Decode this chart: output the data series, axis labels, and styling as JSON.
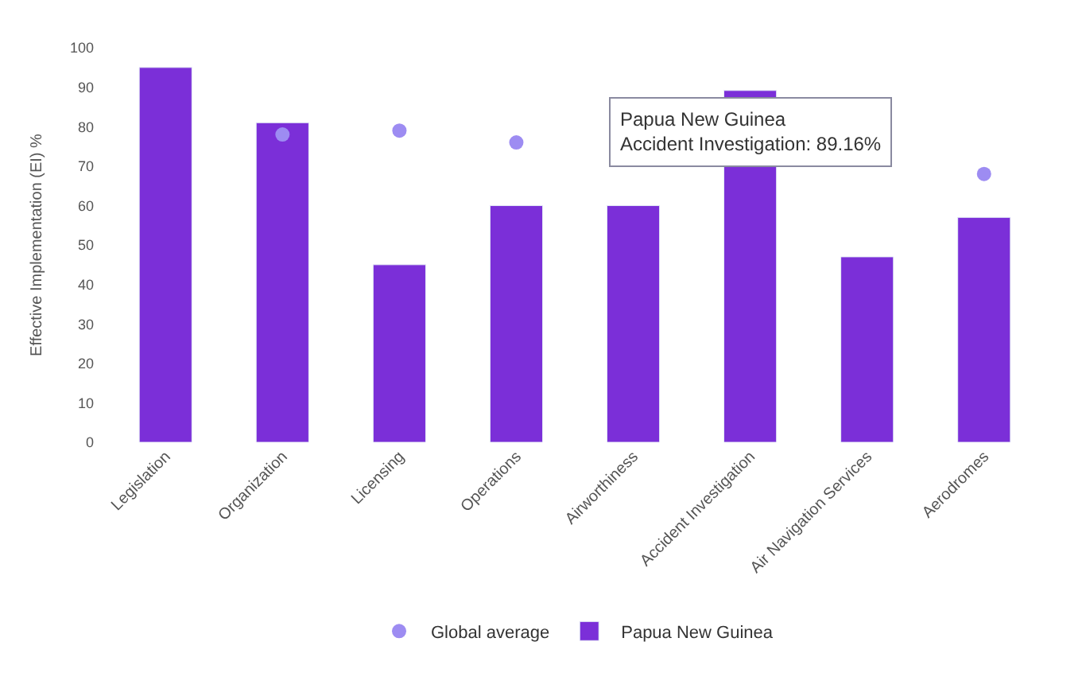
{
  "chart_data": {
    "type": "bar",
    "ylabel": "Effective Implementation (EI) %",
    "categories": [
      "Legislation",
      "Organization",
      "Licensing",
      "Operations",
      "Airworthiness",
      "Accident Investigation",
      "Air Navigation Services",
      "Aerodromes"
    ],
    "series": [
      {
        "name": "Global average",
        "type": "scatter",
        "color": "#9d8cf2",
        "values": [
          null,
          78,
          79,
          76,
          null,
          null,
          null,
          68
        ]
      },
      {
        "name": "Papua New Guinea",
        "color": "#7b2fd8",
        "values": [
          95,
          81,
          45,
          60,
          60,
          89.16,
          47,
          57
        ]
      }
    ],
    "ylim": [
      0,
      100
    ],
    "yticks": [
      0,
      10,
      20,
      30,
      40,
      50,
      60,
      70,
      80,
      90,
      100
    ],
    "annotations": [
      {
        "text": "Papua New Guinea\nAccident Investigation: 89.16%",
        "x": "Accident Investigation",
        "y": 89.16
      }
    ],
    "legend": "bottom",
    "marker": "circle"
  }
}
